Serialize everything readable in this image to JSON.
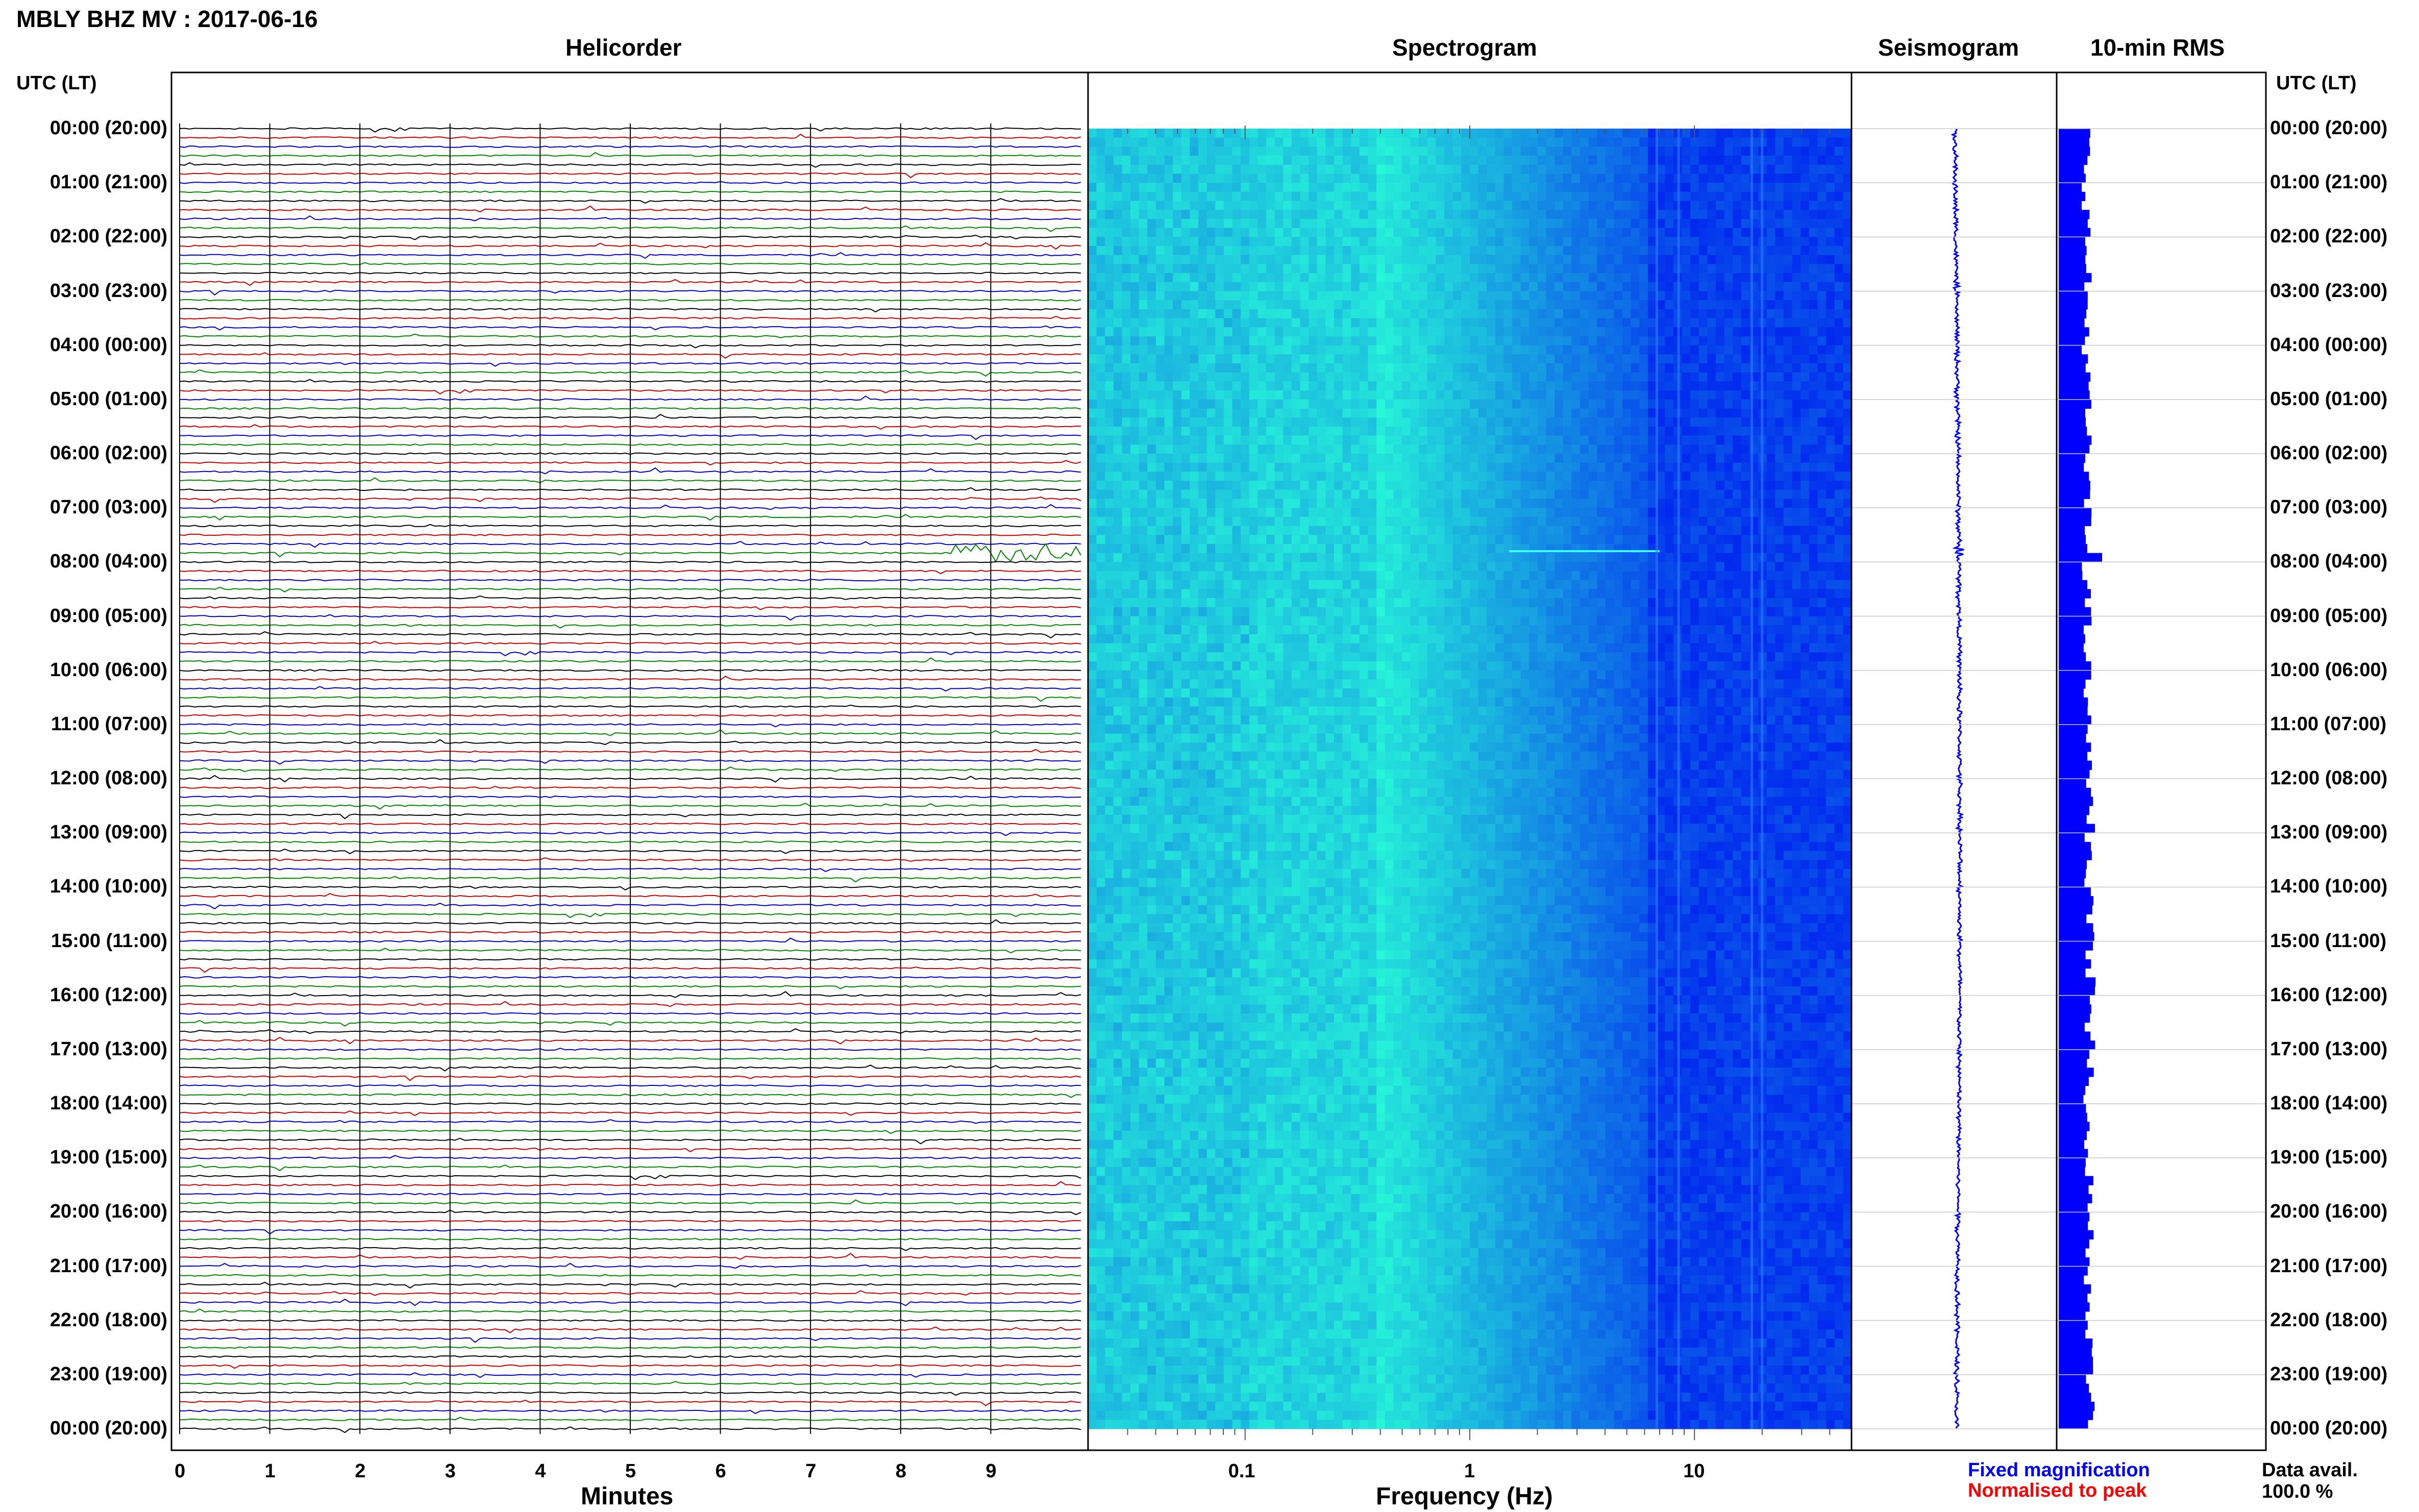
{
  "title": "MBLY BHZ MV : 2017-06-16",
  "panels": {
    "helicorder": "Helicorder",
    "spectrogram": "Spectrogram",
    "seismogram": "Seismogram",
    "rms": "10-min RMS"
  },
  "utc_header_left": "UTC (LT)",
  "utc_header_right": "UTC (LT)",
  "time_labels": [
    "00:00 (20:00)",
    "01:00 (21:00)",
    "02:00 (22:00)",
    "03:00 (23:00)",
    "04:00 (00:00)",
    "05:00 (01:00)",
    "06:00 (02:00)",
    "07:00 (03:00)",
    "08:00 (04:00)",
    "09:00 (05:00)",
    "10:00 (06:00)",
    "11:00 (07:00)",
    "12:00 (08:00)",
    "13:00 (09:00)",
    "14:00 (10:00)",
    "15:00 (11:00)",
    "16:00 (12:00)",
    "17:00 (13:00)",
    "18:00 (14:00)",
    "19:00 (15:00)",
    "20:00 (16:00)",
    "21:00 (17:00)",
    "22:00 (18:00)",
    "23:00 (19:00)",
    "00:00 (20:00)"
  ],
  "legend": {
    "fixed": "Fixed magnification",
    "normalised": "Normalised to peak",
    "fixed_color": "#0000ff",
    "normalised_color": "#ff0000"
  },
  "data_avail": {
    "label": "Data avail.",
    "value": "100.0 %"
  },
  "colors": {
    "trace_cycle": [
      "#000000",
      "#cc0000",
      "#0000cc",
      "#008800"
    ],
    "spectrogram_low": "#0000cc",
    "spectrogram_high": "#00ffd0",
    "seismogram": "#0000ff",
    "rms": "#0000ff"
  },
  "chart_data": [
    {
      "type": "line",
      "name": "helicorder",
      "title": "Helicorder",
      "xlabel": "Minutes",
      "x_ticks": [
        "0",
        "1",
        "2",
        "3",
        "4",
        "5",
        "6",
        "7",
        "8",
        "9"
      ],
      "xlim": [
        0,
        10
      ],
      "ylim_hours": [
        0,
        24
      ],
      "lines_per_hour": 6,
      "events": [
        {
          "hour": 7.8,
          "minute_start": 8.6,
          "minute_end": 10,
          "amplitude": 3
        }
      ]
    },
    {
      "type": "heatmap",
      "name": "spectrogram",
      "title": "Spectrogram",
      "xlabel": "Frequency (Hz)",
      "x_scale": "log",
      "x_ticks": [
        "0.1",
        "1",
        "10"
      ],
      "xlim_hz": [
        0.02,
        50
      ],
      "ylim_hours": [
        0,
        24
      ],
      "peak_energy_hz": 0.4
    },
    {
      "type": "line",
      "name": "seismogram",
      "title": "Seismogram",
      "ylim_hours": [
        0,
        24
      ]
    },
    {
      "type": "bar",
      "name": "10-min-rms",
      "title": "10-min RMS",
      "ylim_hours": [
        0,
        24
      ],
      "spike_hour": 7.83
    }
  ]
}
